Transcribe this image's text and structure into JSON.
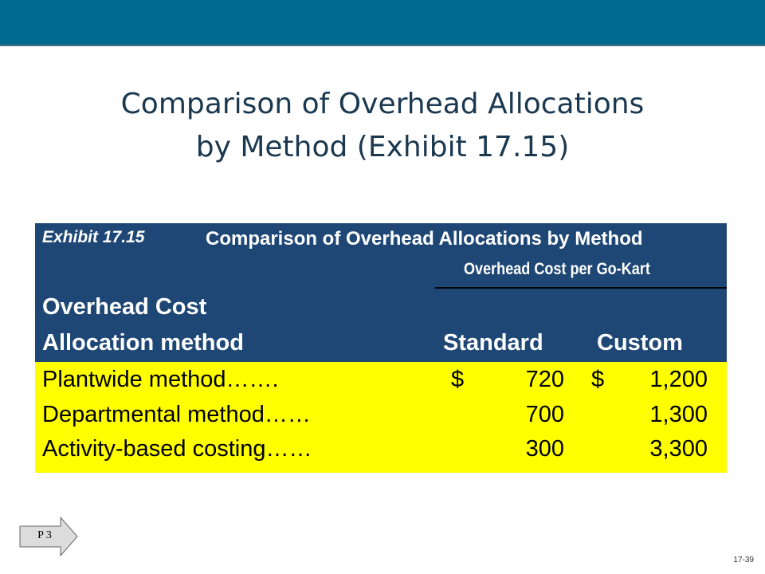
{
  "slide": {
    "title_line1": "Comparison of Overhead Allocations",
    "title_line2": "by Method (Exhibit 17.15)",
    "tag": "P 3",
    "page_number": "17-39"
  },
  "exhibit": {
    "label": "Exhibit 17.15",
    "title": "Comparison of Overhead Allocations by Method",
    "subheader": "Overhead Cost per Go-Kart",
    "col_header_line1": "Overhead Cost",
    "col_header_line2": "Allocation method",
    "col_standard": "Standard",
    "col_custom": "Custom",
    "rows": [
      {
        "label": "Plantwide method…….",
        "cur_std": "$",
        "standard": "720",
        "cur_cus": "$",
        "custom": "1,200"
      },
      {
        "label": "Departmental method……",
        "cur_std": "",
        "standard": "700",
        "cur_cus": "",
        "custom": "1,300"
      },
      {
        "label": "Activity-based costing……",
        "cur_std": "",
        "standard": "300",
        "cur_cus": "",
        "custom": "3,300"
      }
    ]
  },
  "colors": {
    "top_bar": "#006b8e",
    "header_bg": "#1e4775",
    "body_bg": "#ffff00",
    "title_text": "#1a3850"
  }
}
